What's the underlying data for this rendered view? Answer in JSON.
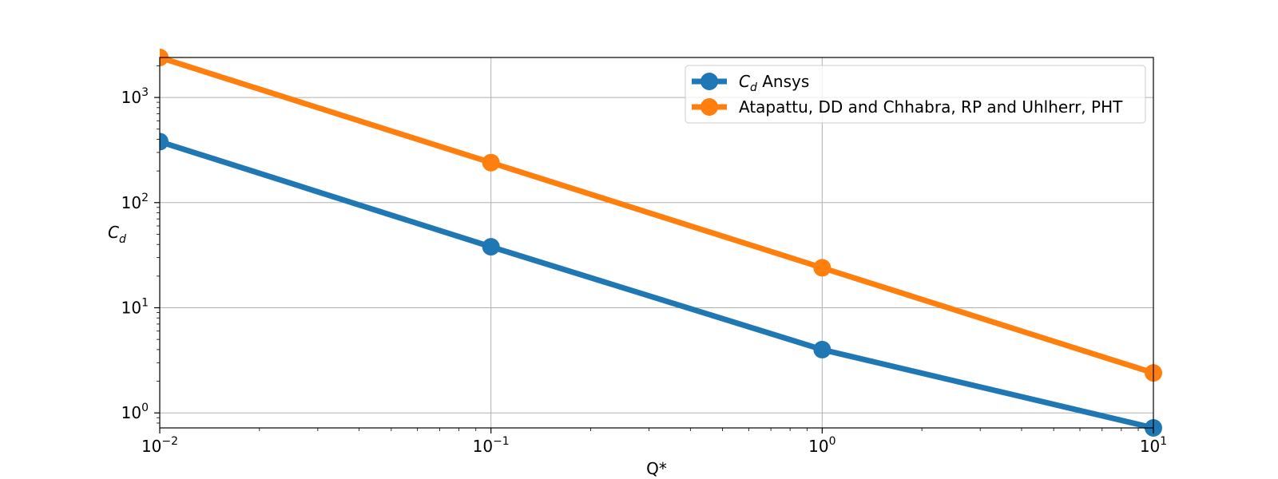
{
  "chart_data": {
    "type": "line",
    "title": "",
    "xlabel": "Q*",
    "ylabel": "C_d",
    "xscale": "log",
    "yscale": "log",
    "xlim": [
      0.01,
      10
    ],
    "ylim": [
      0.72,
      2400
    ],
    "grid": true,
    "legend_position": "top-right",
    "x_ticks": [
      {
        "base": "10",
        "exp": "−2"
      },
      {
        "base": "10",
        "exp": "−1"
      },
      {
        "base": "10",
        "exp": "0"
      },
      {
        "base": "10",
        "exp": "1"
      }
    ],
    "y_ticks": [
      {
        "base": "10",
        "exp": "0"
      },
      {
        "base": "10",
        "exp": "1"
      },
      {
        "base": "10",
        "exp": "2"
      },
      {
        "base": "10",
        "exp": "3"
      }
    ],
    "series": [
      {
        "name": "C_d Ansys",
        "name_main": "C",
        "name_sub": "d",
        "name_rest": " Ansys",
        "color": "#1f77b4",
        "x": [
          0.01,
          0.1,
          1,
          10
        ],
        "y": [
          380,
          38,
          4.0,
          0.72
        ]
      },
      {
        "name": "Atapattu, DD and Chhabra, RP and Uhlherr, PHT",
        "color": "#ff7f0e",
        "x": [
          0.01,
          0.1,
          1,
          10
        ],
        "y": [
          2400,
          240,
          24,
          2.4
        ]
      }
    ]
  }
}
